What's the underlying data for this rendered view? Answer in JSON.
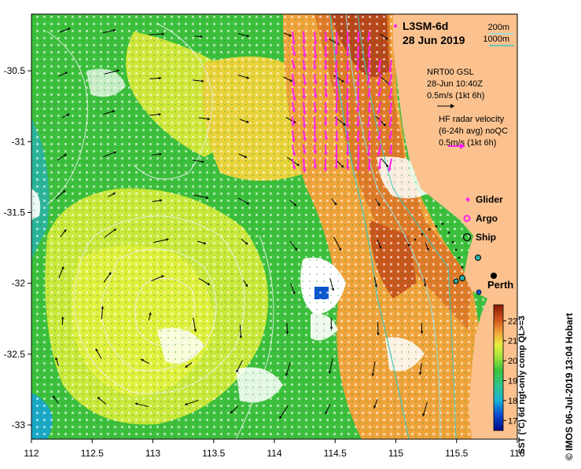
{
  "map": {
    "title": "L3SM-6d",
    "date": "28 Jun 2019",
    "lon_range": [
      112,
      116
    ],
    "lat_range": [
      -33.1,
      -30.1
    ],
    "x_ticks": [
      "112",
      "112.5",
      "113",
      "113.5",
      "114",
      "114.5",
      "115",
      "115.5",
      "116"
    ],
    "y_ticks": [
      "-30.5",
      "-31",
      "-31.5",
      "-32",
      "-32.5",
      "-33"
    ],
    "contour_legend": [
      "200m",
      "1000m"
    ],
    "annotations": {
      "gsl_title": "NRT00 GSL",
      "gsl_time": "28-Jun 10:40Z",
      "gsl_scale": "0.5m/s (1kt 6h)",
      "hf_title": "HF radar velocity",
      "hf_avg": "(6-24h avg) noQC",
      "hf_scale": "0.5m/s (1kt 6h)"
    },
    "legend": {
      "glider": "Glider",
      "argo": "Argo",
      "ship": "Ship"
    },
    "city": "Perth",
    "colorbar": {
      "label": "SST (°C) 6d ngt-only comp QL>=3",
      "ticks": [
        "17",
        "18",
        "19",
        "20",
        "21",
        "22"
      ],
      "range": [
        16.5,
        22.8
      ]
    },
    "credit": "© IMOS 06-Jul-2019 13:04 Hobart",
    "colors": {
      "land": "#fbc28f",
      "hf_arrows": "#ff22ee",
      "contour_200": "#8fe0e6",
      "contour_1000": "#3fc7c0",
      "sst_low": "#000a8a",
      "sst_high": "#8a1a08"
    }
  }
}
